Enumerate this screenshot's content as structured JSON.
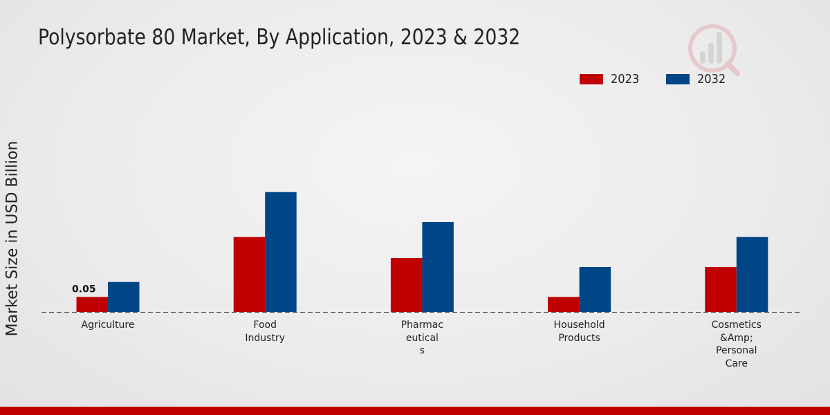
{
  "chart_data": {
    "type": "bar",
    "title": "Polysorbate 80 Market, By Application, 2023 & 2032",
    "xlabel": "",
    "ylabel": "Market Size in USD Billion",
    "categories": [
      "Agriculture",
      "Food\nIndustry",
      "Pharmac\neutical\ns",
      "Household\nProducts",
      "Cosmetics\n&Amp;\nPersonal\nCare"
    ],
    "series": [
      {
        "name": "2023",
        "color": "#c00000",
        "values": [
          0.05,
          0.25,
          0.18,
          0.05,
          0.15
        ]
      },
      {
        "name": "2032",
        "color": "#004687",
        "values": [
          0.1,
          0.4,
          0.3,
          0.15,
          0.25
        ]
      }
    ],
    "data_labels": [
      {
        "series": "2023",
        "category": "Agriculture",
        "text": "0.05"
      }
    ],
    "ylim": [
      0,
      0.6
    ],
    "grid": false,
    "legend_position": "top-right"
  }
}
